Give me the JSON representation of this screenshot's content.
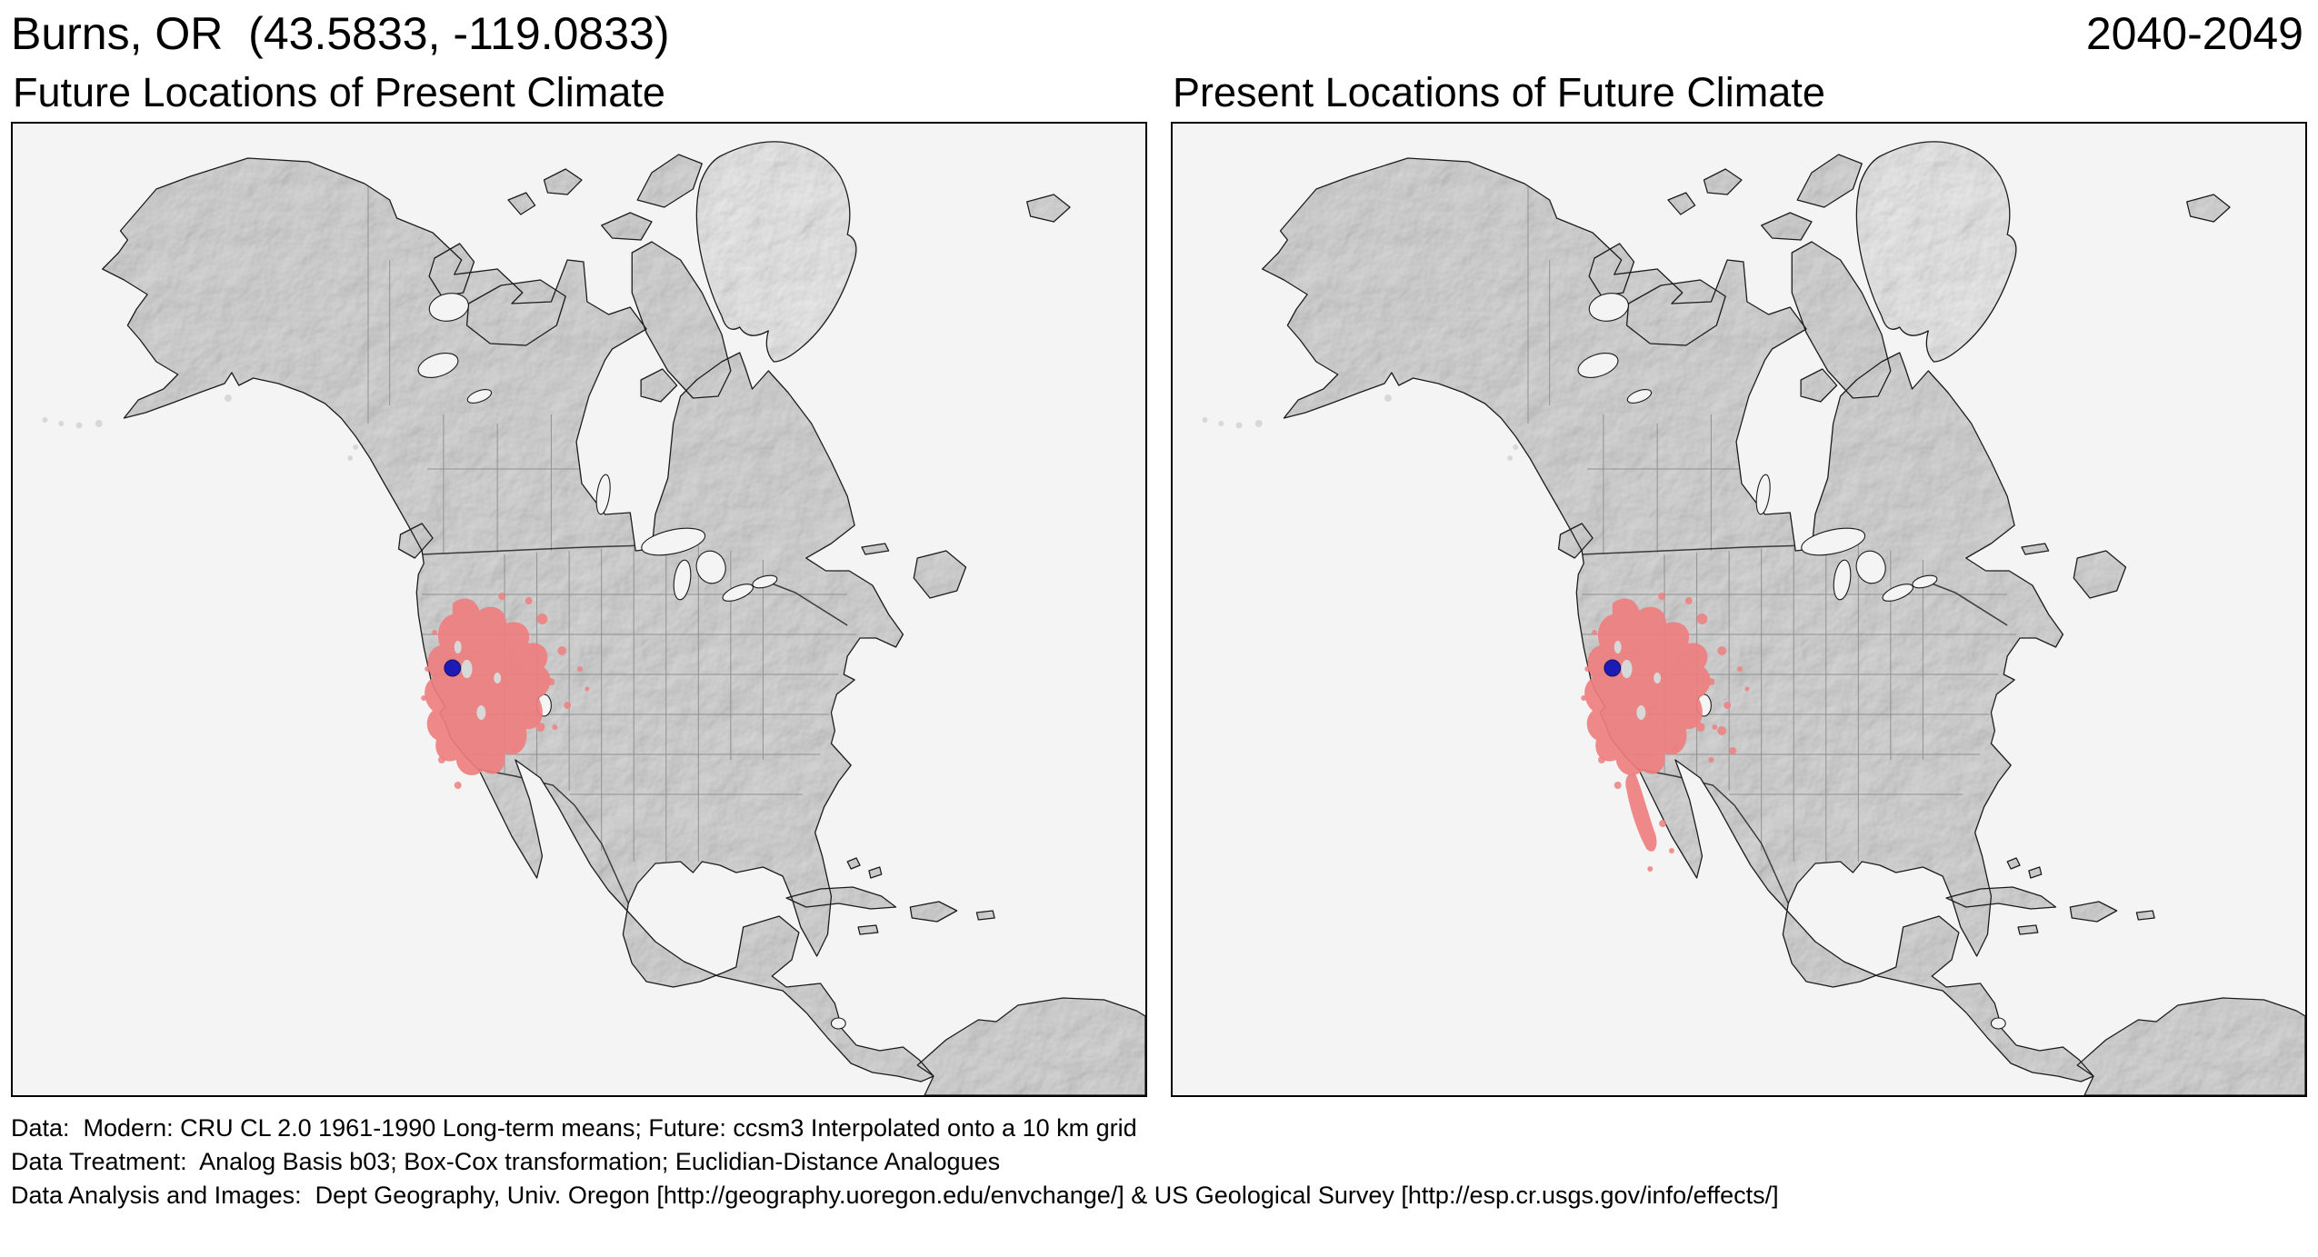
{
  "header": {
    "location_label": "Burns, OR  (43.5833, -119.0833)",
    "period_label": "2040-2049"
  },
  "panels": [
    {
      "title": "Future Locations of Present Climate"
    },
    {
      "title": "Present Locations of Future Climate"
    }
  ],
  "footer": {
    "lines": [
      "Data:  Modern: CRU CL 2.0 1961-1990 Long-term means; Future: ccsm3 Interpolated onto a 10 km grid",
      "Data Treatment:  Analog Basis b03; Box-Cox transformation; Euclidian-Distance Analogues",
      "Data Analysis and Images:  Dept Geography, Univ. Oregon [http://geography.uoregon.edu/envchange/] & US Geological Survey [http://esp.cr.usgs.gov/info/effects/]"
    ]
  },
  "map": {
    "marker_label": "Burns, OR",
    "marker_color": "#1c1cb4",
    "analog_region_color": "#ee7f7f",
    "land_color": "#d8d8d8",
    "greenland_color": "#ececec",
    "ocean_color": "#f4f4f4",
    "coast_color": "#1b1b1b",
    "state_border_color": "#909090",
    "national_border_color": "#3a3a3a",
    "lake_color": "#f4f4f4"
  }
}
